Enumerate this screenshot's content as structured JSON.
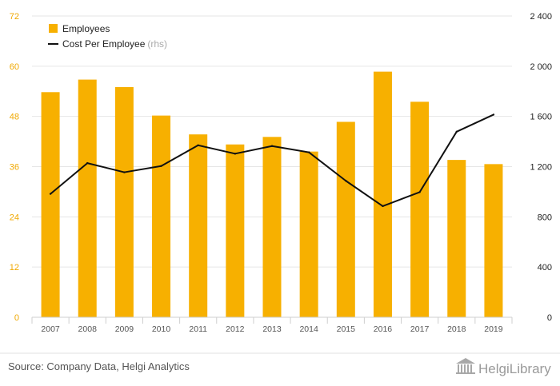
{
  "chart_data": {
    "type": "bar",
    "categories": [
      "2007",
      "2008",
      "2009",
      "2010",
      "2011",
      "2012",
      "2013",
      "2014",
      "2015",
      "2016",
      "2017",
      "2018",
      "2019"
    ],
    "series": [
      {
        "name": "Employees",
        "type": "bar",
        "axis": "left",
        "color": "#f7b000",
        "values": [
          53.8,
          56.8,
          55.0,
          48.2,
          43.7,
          41.3,
          43.1,
          39.6,
          46.7,
          58.7,
          51.5,
          37.6,
          36.6
        ]
      },
      {
        "name": "Cost Per Employee",
        "suffix": "(rhs)",
        "type": "line",
        "axis": "right",
        "color": "#111111",
        "values": [
          983,
          1228,
          1155,
          1205,
          1370,
          1303,
          1364,
          1314,
          1087,
          885,
          997,
          1478,
          1614
        ]
      }
    ],
    "ylim_left": [
      0,
      72
    ],
    "yticks_left": [
      "0",
      "12",
      "24",
      "36",
      "48",
      "60",
      "72"
    ],
    "ylim_right": [
      0,
      2400
    ],
    "yticks_right": [
      "0",
      "400",
      "800",
      "1 200",
      "1 600",
      "2 000",
      "2 400"
    ],
    "legend_position": "top-left",
    "grid": true
  },
  "footer": {
    "source": "Source: Company Data, Helgi Analytics",
    "brand": "HelgiLibrary"
  }
}
